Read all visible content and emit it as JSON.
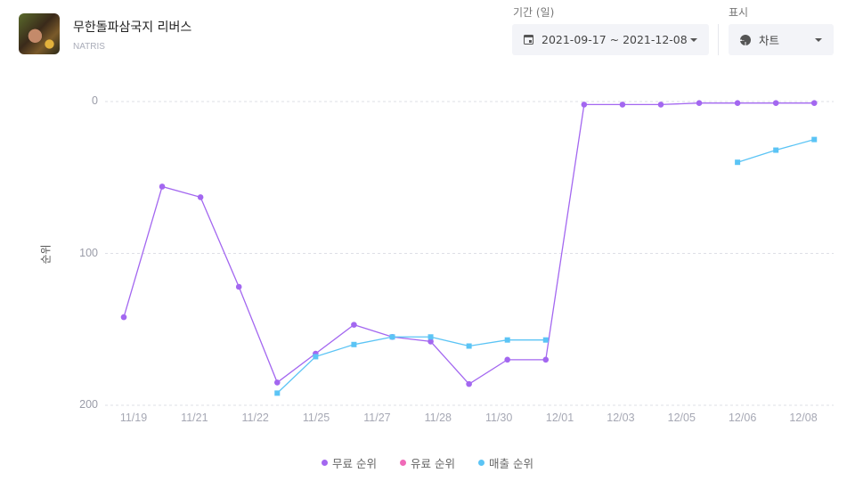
{
  "app": {
    "title": "무한돌파삼국지 리버스",
    "publisher": "NATRIS",
    "icon": "app-icon"
  },
  "filters": {
    "period_label": "기간 (일)",
    "period_value": "2021-09-17 ~ 2021-12-08",
    "period_icon": "calendar-icon",
    "view_label": "표시",
    "view_value": "차트",
    "view_icon": "pie-chart-icon"
  },
  "colors": {
    "free_rank": "#a367f0",
    "paid_rank": "#f06ab8",
    "revenue_rank": "#5bc4f5",
    "grid": "#dedfe6"
  },
  "chart_data": {
    "type": "line",
    "title": "",
    "xlabel": "",
    "ylabel": "순위",
    "y_inverted": true,
    "ylim": [
      0,
      200
    ],
    "yticks": [
      0,
      100,
      200
    ],
    "grid": true,
    "legend_position": "bottom",
    "x_tick_labels": [
      "11/19",
      "11/21",
      "11/22",
      "11/25",
      "11/27",
      "11/28",
      "11/30",
      "12/01",
      "12/03",
      "12/05",
      "12/06",
      "12/08"
    ],
    "point_count": 19,
    "series": [
      {
        "name": "무료 순위",
        "color": "#a367f0",
        "marker": "circle",
        "values": [
          142,
          56,
          63,
          122,
          185,
          166,
          147,
          155,
          158,
          186,
          170,
          170,
          2,
          2,
          2,
          1,
          1,
          1,
          1
        ]
      },
      {
        "name": "유료 순위",
        "color": "#f06ab8",
        "marker": "circle",
        "values": [
          null,
          null,
          null,
          null,
          null,
          null,
          null,
          null,
          null,
          null,
          null,
          null,
          null,
          null,
          null,
          null,
          null,
          null,
          null
        ]
      },
      {
        "name": "매출 순위",
        "color": "#5bc4f5",
        "marker": "square",
        "values": [
          null,
          null,
          null,
          null,
          192,
          168,
          160,
          155,
          155,
          161,
          157,
          157,
          null,
          null,
          null,
          null,
          40,
          32,
          25
        ]
      }
    ]
  },
  "legend": [
    {
      "label": "무료 순위",
      "color": "#a367f0"
    },
    {
      "label": "유료 순위",
      "color": "#f06ab8"
    },
    {
      "label": "매출 순위",
      "color": "#5bc4f5"
    }
  ]
}
